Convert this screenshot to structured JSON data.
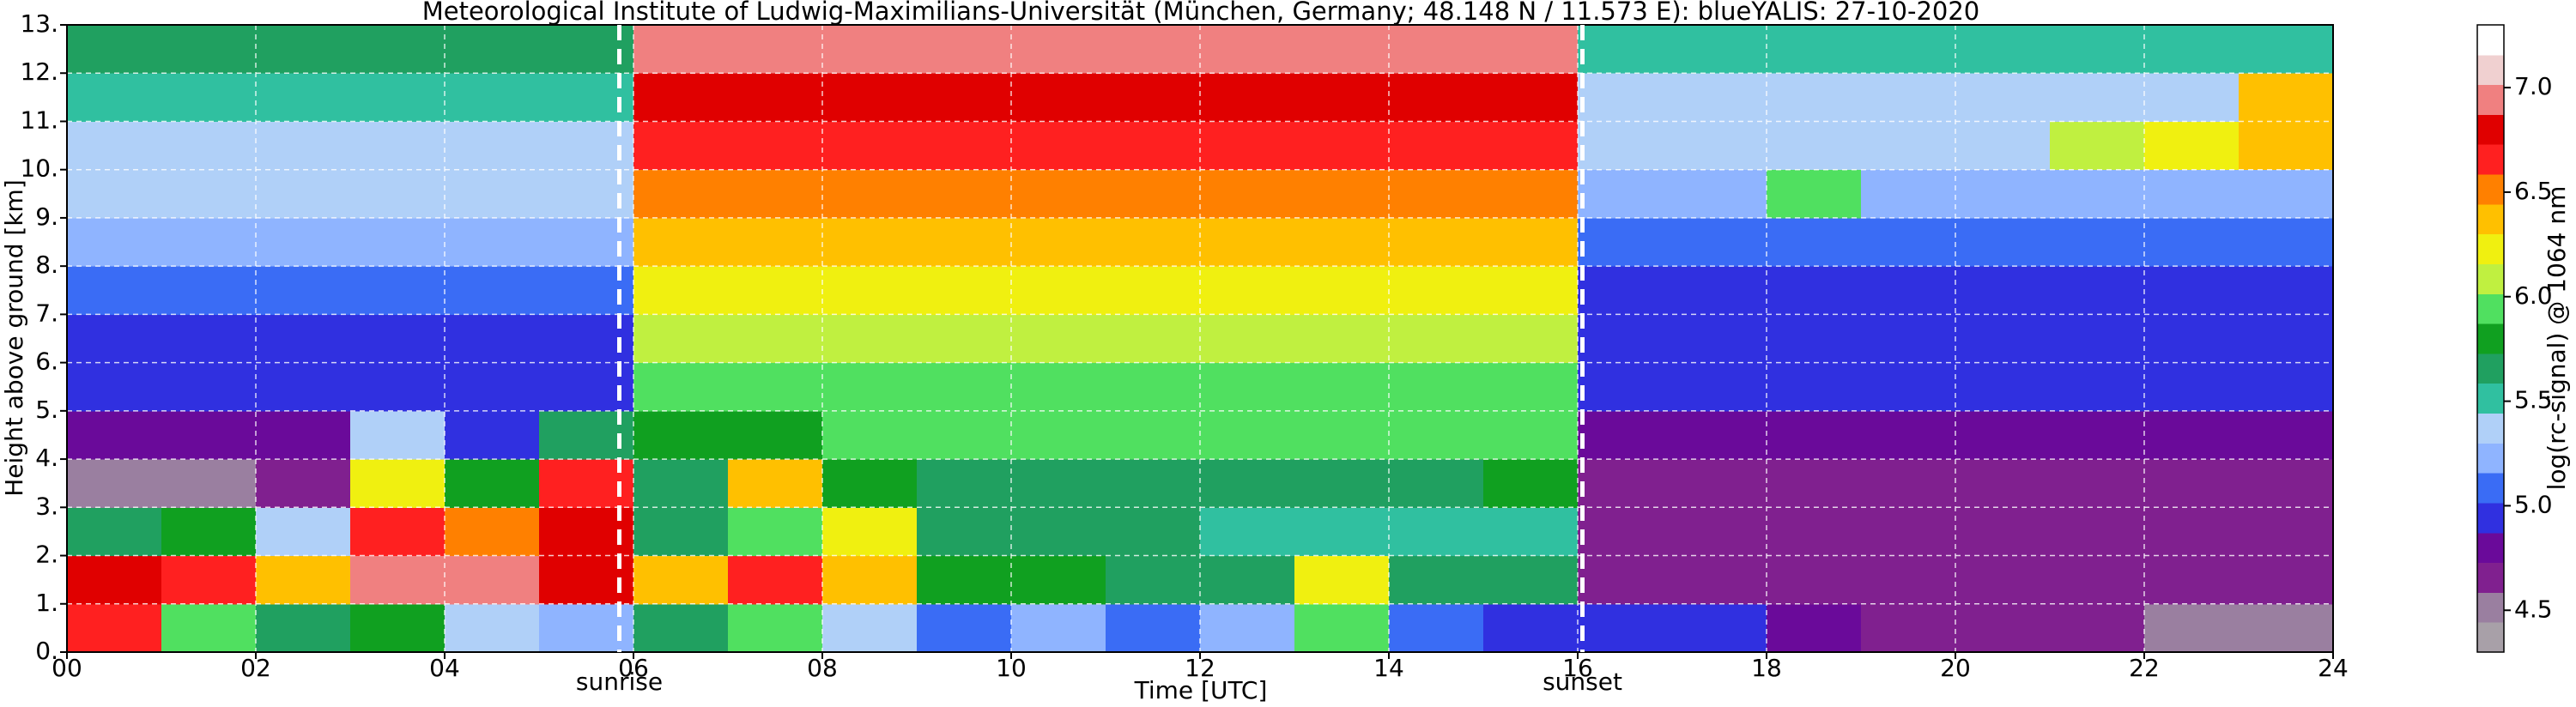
{
  "chart_data": {
    "type": "heatmap",
    "title": "Meteorological Institute of Ludwig-Maximilians-Universität (München, Germany; 48.148 N / 11.573 E):    blueYALIS: 27-10-2020",
    "x_label": "Time [UTC]",
    "y_label": "Height above ground [km]",
    "colorbar_label": "log(rc-signal) @ 1064 nm",
    "x": [
      0,
      1,
      2,
      3,
      4,
      5,
      6,
      7,
      8,
      9,
      10,
      11,
      12,
      13,
      14,
      15,
      16,
      17,
      18,
      19,
      20,
      21,
      22,
      23
    ],
    "y": [
      0,
      1,
      2,
      3,
      4,
      5,
      6,
      7,
      8,
      9,
      10,
      11,
      12
    ],
    "z": [
      [
        6.6,
        6.0,
        5.6,
        5.8,
        5.3,
        5.2,
        5.6,
        6.0,
        5.4,
        5.1,
        5.2,
        5.1,
        5.2,
        5.9,
        5.1,
        5.0,
        4.9,
        4.9,
        4.8,
        4.6,
        4.6,
        4.6,
        4.5,
        4.5
      ],
      [
        6.8,
        6.7,
        6.4,
        6.9,
        6.9,
        6.8,
        6.4,
        6.6,
        6.3,
        5.8,
        5.8,
        5.6,
        5.6,
        6.2,
        5.7,
        5.7,
        4.6,
        4.6,
        4.6,
        4.6,
        4.7,
        4.7,
        4.7,
        4.7
      ],
      [
        5.6,
        5.8,
        5.4,
        6.7,
        6.5,
        6.8,
        5.6,
        6.0,
        6.2,
        5.6,
        5.6,
        5.6,
        5.5,
        5.5,
        5.5,
        5.5,
        4.6,
        4.6,
        4.6,
        4.6,
        4.6,
        4.6,
        4.6,
        4.6
      ],
      [
        4.5,
        4.5,
        4.6,
        6.2,
        5.8,
        6.6,
        5.6,
        6.4,
        5.8,
        5.7,
        5.7,
        5.7,
        5.7,
        5.7,
        5.7,
        5.8,
        4.7,
        4.7,
        4.7,
        4.7,
        4.7,
        4.7,
        4.7,
        4.7
      ],
      [
        4.8,
        4.8,
        4.8,
        5.3,
        5.0,
        5.6,
        5.8,
        5.8,
        5.9,
        5.9,
        5.9,
        5.9,
        5.9,
        5.9,
        5.9,
        5.9,
        4.8,
        4.8,
        4.8,
        4.8,
        4.8,
        4.8,
        4.8,
        4.8
      ],
      [
        4.9,
        4.9,
        4.9,
        4.9,
        4.9,
        4.9,
        6.0,
        6.0,
        6.0,
        6.0,
        6.0,
        6.0,
        6.0,
        6.0,
        6.0,
        6.0,
        4.9,
        4.9,
        4.9,
        4.9,
        4.9,
        4.9,
        4.9,
        4.9
      ],
      [
        5.0,
        5.0,
        5.0,
        5.0,
        5.0,
        5.0,
        6.1,
        6.1,
        6.1,
        6.1,
        6.1,
        6.1,
        6.1,
        6.1,
        6.1,
        6.1,
        5.0,
        5.0,
        5.0,
        5.0,
        5.0,
        5.0,
        5.0,
        5.0
      ],
      [
        5.1,
        5.1,
        5.1,
        5.1,
        5.1,
        5.1,
        6.2,
        6.2,
        6.2,
        6.2,
        6.2,
        6.2,
        6.2,
        6.2,
        6.2,
        6.2,
        5.0,
        5.0,
        5.0,
        5.0,
        5.0,
        5.0,
        5.0,
        5.0
      ],
      [
        5.2,
        5.2,
        5.2,
        5.2,
        5.2,
        5.2,
        6.3,
        6.3,
        6.3,
        6.3,
        6.3,
        6.3,
        6.3,
        6.3,
        6.3,
        6.3,
        5.1,
        5.1,
        5.1,
        5.1,
        5.1,
        5.1,
        5.1,
        5.1
      ],
      [
        5.3,
        5.3,
        5.3,
        5.3,
        5.3,
        5.3,
        6.5,
        6.5,
        6.5,
        6.5,
        6.5,
        6.5,
        6.5,
        6.5,
        6.5,
        6.5,
        5.2,
        5.2,
        6.0,
        5.2,
        5.2,
        5.2,
        5.2,
        5.2
      ],
      [
        5.4,
        5.4,
        5.4,
        5.4,
        5.4,
        5.4,
        6.6,
        6.6,
        6.6,
        6.6,
        6.6,
        6.6,
        6.6,
        6.6,
        6.6,
        6.6,
        5.3,
        5.3,
        5.3,
        5.3,
        5.3,
        6.1,
        6.2,
        6.3
      ],
      [
        5.5,
        5.5,
        5.5,
        5.5,
        5.5,
        5.5,
        6.8,
        6.8,
        6.8,
        6.8,
        6.8,
        6.8,
        6.8,
        6.8,
        6.8,
        6.8,
        5.4,
        5.4,
        5.4,
        5.4,
        5.4,
        5.4,
        5.4,
        6.4
      ],
      [
        5.6,
        5.6,
        5.6,
        5.6,
        5.6,
        5.6,
        6.9,
        6.9,
        6.9,
        6.9,
        6.9,
        6.9,
        6.9,
        6.9,
        6.9,
        6.9,
        5.5,
        5.5,
        5.5,
        5.5,
        5.5,
        5.5,
        5.5,
        5.5
      ]
    ],
    "xlim": [
      0,
      24
    ],
    "ylim": [
      0,
      13
    ],
    "zlim": [
      4.3,
      7.3
    ],
    "xticks": [
      {
        "value": 0,
        "label": "00"
      },
      {
        "value": 2,
        "label": "02"
      },
      {
        "value": 4,
        "label": "04"
      },
      {
        "value": 6,
        "label": "06"
      },
      {
        "value": 8,
        "label": "08"
      },
      {
        "value": 10,
        "label": "10"
      },
      {
        "value": 12,
        "label": "12"
      },
      {
        "value": 14,
        "label": "14"
      },
      {
        "value": 16,
        "label": "16"
      },
      {
        "value": 18,
        "label": "18"
      },
      {
        "value": 20,
        "label": "20"
      },
      {
        "value": 22,
        "label": "22"
      },
      {
        "value": 24,
        "label": "24"
      }
    ],
    "yticks": [
      {
        "value": 0,
        "label": "0."
      },
      {
        "value": 1,
        "label": "1."
      },
      {
        "value": 2,
        "label": "2."
      },
      {
        "value": 3,
        "label": "3."
      },
      {
        "value": 4,
        "label": "4."
      },
      {
        "value": 5,
        "label": "5."
      },
      {
        "value": 6,
        "label": "6."
      },
      {
        "value": 7,
        "label": "7."
      },
      {
        "value": 8,
        "label": "8."
      },
      {
        "value": 9,
        "label": "9."
      },
      {
        "value": 10,
        "label": "10."
      },
      {
        "value": 11,
        "label": "11."
      },
      {
        "value": 12,
        "label": "12."
      },
      {
        "value": 13,
        "label": "13."
      }
    ],
    "colorbar_ticks": [
      4.5,
      {
        "value": 5,
        "label": "5.0"
      },
      5.5,
      {
        "value": 6,
        "label": "6.0"
      },
      6.5,
      {
        "value": 7,
        "label": "7.0"
      }
    ],
    "colors": [
      "#a8a0a8",
      "#9a7fa0",
      "#80208f",
      "#6a0a9a",
      "#3030e0",
      "#3a6cf5",
      "#8fb4ff",
      "#b0d0f8",
      "#30c0a0",
      "#20a060",
      "#10a020",
      "#50e060",
      "#c0f040",
      "#f0f010",
      "#ffc000",
      "#ff8000",
      "#ff2020",
      "#e00000",
      "#f08080",
      "#f0d0d0",
      "#ffffff"
    ],
    "grid": true,
    "annotations": [
      {
        "x": 5.85,
        "text": "sunrise"
      },
      {
        "x": 16.05,
        "text": "sunset"
      }
    ]
  }
}
